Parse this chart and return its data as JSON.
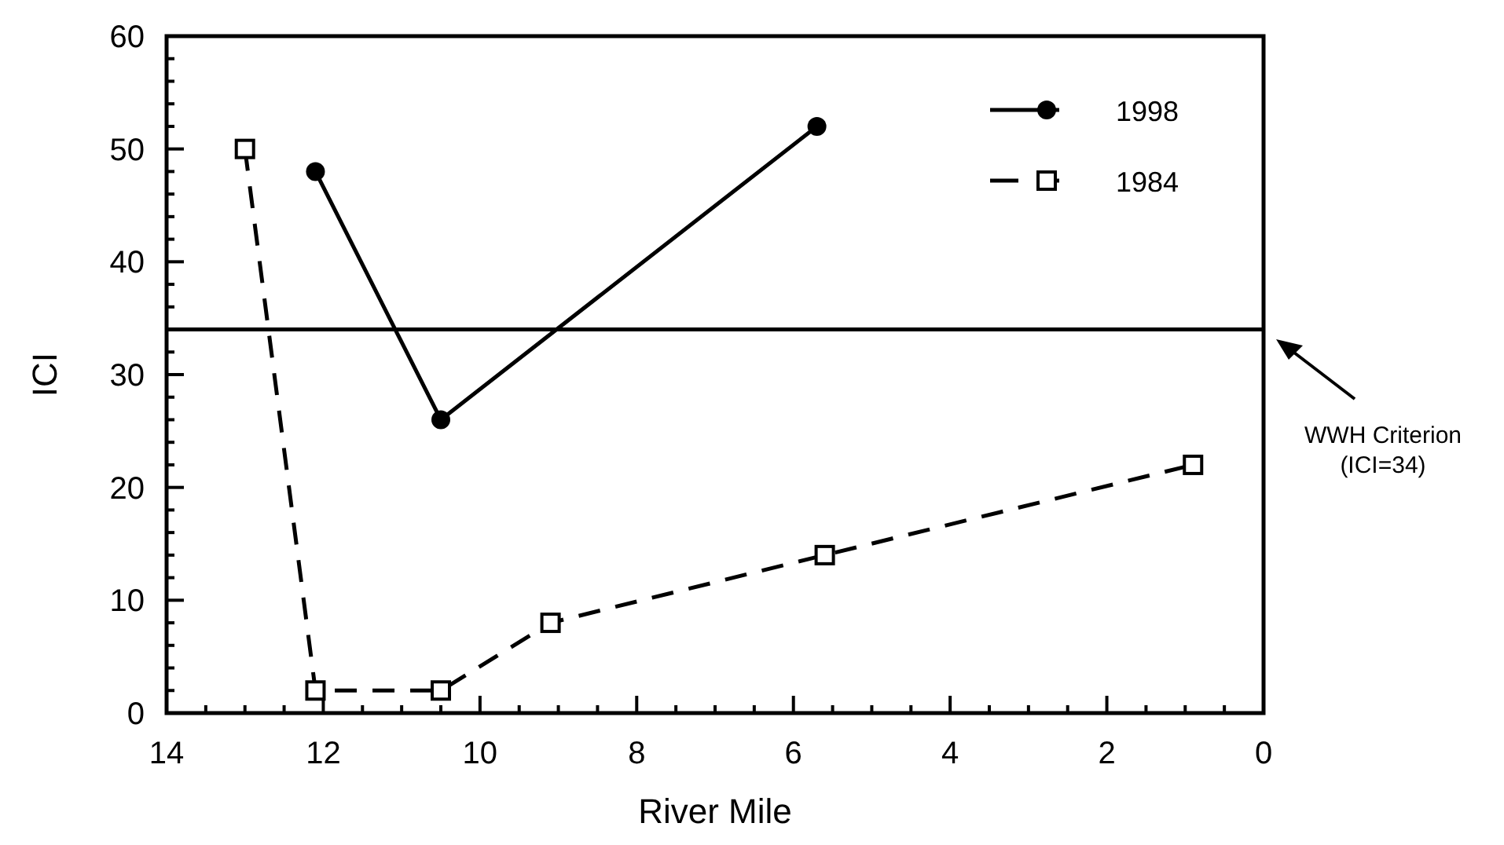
{
  "chart_data": {
    "type": "line",
    "xlabel": "River Mile",
    "ylabel": "ICI",
    "xlim": [
      14,
      0
    ],
    "xticks": [
      14,
      {
        "value": 13.5,
        "label": null
      },
      {
        "value": 13,
        "label": null
      },
      {
        "value": 12.5,
        "label": null
      },
      12,
      {
        "value": 11.5,
        "label": null
      },
      {
        "value": 11,
        "label": null
      },
      {
        "value": 10.5,
        "label": null
      },
      10,
      {
        "value": 9.5,
        "label": null
      },
      {
        "value": 9,
        "label": null
      },
      {
        "value": 8.5,
        "label": null
      },
      8,
      {
        "value": 7.5,
        "label": null
      },
      {
        "value": 7,
        "label": null
      },
      {
        "value": 6.5,
        "label": null
      },
      6,
      {
        "value": 5.5,
        "label": null
      },
      {
        "value": 5,
        "label": null
      },
      {
        "value": 4.5,
        "label": null
      },
      4,
      {
        "value": 3.5,
        "label": null
      },
      {
        "value": 3,
        "label": null
      },
      {
        "value": 2.5,
        "label": null
      },
      2,
      {
        "value": 1.5,
        "label": null
      },
      {
        "value": 1,
        "label": null
      },
      {
        "value": 0.5,
        "label": null
      },
      0
    ],
    "ylim": [
      0,
      60
    ],
    "yticks": [
      0,
      {
        "value": 2,
        "label": null
      },
      {
        "value": 4,
        "label": null
      },
      {
        "value": 6,
        "label": null
      },
      {
        "value": 8,
        "label": null
      },
      10,
      {
        "value": 12,
        "label": null
      },
      {
        "value": 14,
        "label": null
      },
      {
        "value": 16,
        "label": null
      },
      {
        "value": 18,
        "label": null
      },
      20,
      {
        "value": 22,
        "label": null
      },
      {
        "value": 24,
        "label": null
      },
      {
        "value": 26,
        "label": null
      },
      {
        "value": 28,
        "label": null
      },
      30,
      {
        "value": 32,
        "label": null
      },
      {
        "value": 34,
        "label": null
      },
      {
        "value": 36,
        "label": null
      },
      {
        "value": 38,
        "label": null
      },
      40,
      {
        "value": 42,
        "label": null
      },
      {
        "value": 44,
        "label": null
      },
      {
        "value": 46,
        "label": null
      },
      {
        "value": 48,
        "label": null
      },
      50,
      {
        "value": 52,
        "label": null
      },
      {
        "value": 54,
        "label": null
      },
      {
        "value": 56,
        "label": null
      },
      {
        "value": 58,
        "label": null
      },
      60
    ],
    "legend": "top right",
    "series": [
      {
        "name": "1998",
        "color": "#000000",
        "marker": "circle",
        "line_style": "solid",
        "x": [
          12.1,
          10.5,
          5.7
        ],
        "values": [
          48,
          26,
          52
        ]
      },
      {
        "name": "1984",
        "color": "#000000",
        "marker": "square",
        "line_style": "dashed",
        "x": [
          13.0,
          12.1,
          10.5,
          9.1,
          5.6,
          0.9
        ],
        "values": [
          50,
          2,
          2,
          8,
          14,
          22
        ]
      }
    ],
    "annotations": [
      "WWH Criterion\n(ICI=34)"
    ],
    "ref_lines": [
      {
        "axis": "y",
        "value": 34,
        "color": "#000000",
        "line_style": "solid"
      }
    ]
  }
}
